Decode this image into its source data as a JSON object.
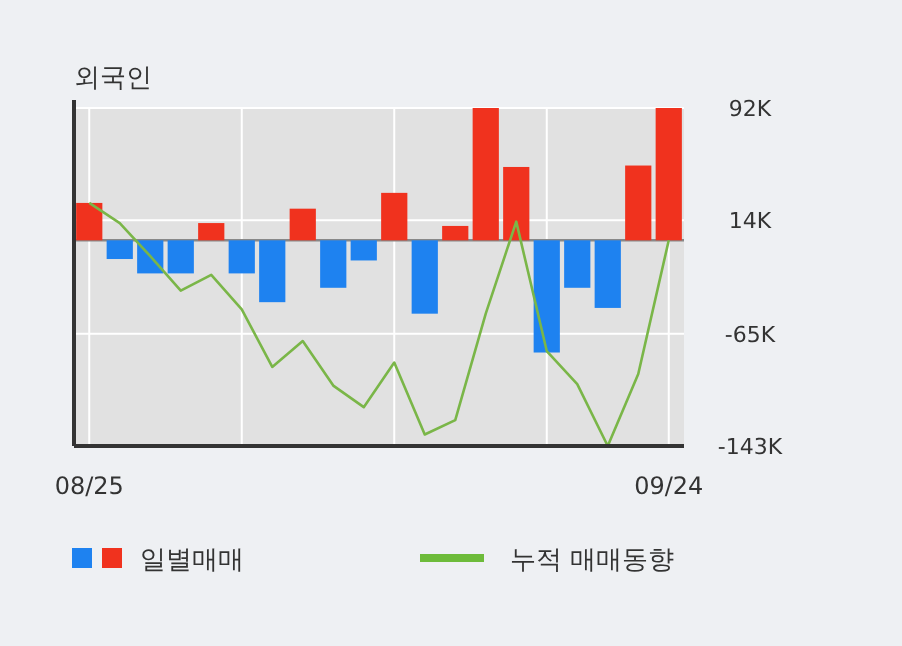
{
  "chart_data": {
    "type": "bar",
    "title": "외국인",
    "categories": [
      "08/25",
      null,
      null,
      null,
      null,
      null,
      null,
      null,
      null,
      null,
      null,
      null,
      null,
      null,
      null,
      null,
      null,
      null,
      null,
      "09/24"
    ],
    "series": [
      {
        "name": "일별매매",
        "colors": [
          "#f0321e",
          "#1e82f0",
          "#1e82f0",
          "#1e82f0",
          "#f0321e",
          "#1e82f0",
          "#1e82f0",
          "#f0321e",
          "#1e82f0",
          "#1e82f0",
          "#f0321e",
          "#1e82f0",
          "#f0321e",
          "#f0321e",
          "#f0321e",
          "#1e82f0",
          "#1e82f0",
          "#1e82f0",
          "#f0321e",
          "#f0321e"
        ],
        "values": [
          26,
          -13,
          -23,
          -23,
          12,
          -23,
          -43,
          22,
          -33,
          -14,
          33,
          -51,
          10,
          92,
          51,
          -78,
          -33,
          -47,
          52,
          92
        ]
      },
      {
        "name": "누적 매매동향",
        "type": "line",
        "color": "#7ab648",
        "values": [
          26,
          12,
          -11,
          -35,
          -24,
          -48,
          -88,
          -70,
          -101,
          -116,
          -85,
          -135,
          -125,
          -51,
          13,
          -77,
          -100,
          -143,
          -93,
          0
        ]
      }
    ],
    "ylim": [
      -143,
      92
    ],
    "yticks": [
      {
        "value": 92,
        "label": "92K"
      },
      {
        "value": 14,
        "label": "14K"
      },
      {
        "value": -65,
        "label": "-65K"
      },
      {
        "value": -143,
        "label": "-143K"
      }
    ],
    "grid": true,
    "legend": "bottom"
  }
}
